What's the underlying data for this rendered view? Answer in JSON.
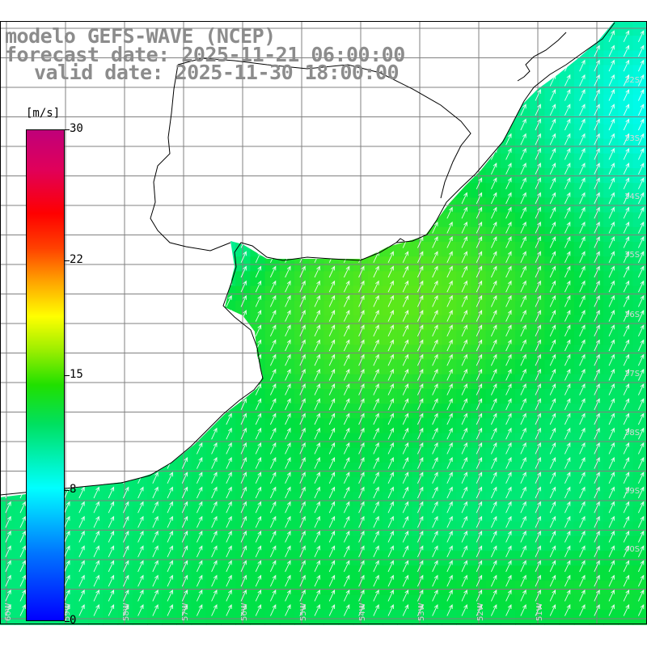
{
  "title": {
    "model": "modelo GEFS-WAVE (NCEP)",
    "forecast": "forecast date: 2025-11-21 06:00:00",
    "valid": "valid date: 2025-11-30 18:00:00"
  },
  "colorbar": {
    "unit": "[m/s]",
    "min": 0,
    "max": 30,
    "ticks": [
      {
        "value": 30,
        "label": "30"
      },
      {
        "value": 22,
        "label": "22"
      },
      {
        "value": 15,
        "label": "15"
      },
      {
        "value": 8,
        "label": "8"
      },
      {
        "value": 0,
        "label": "0"
      }
    ],
    "stops": [
      {
        "value": 0,
        "color": "#0000ff"
      },
      {
        "value": 8,
        "color": "#00ffff"
      },
      {
        "value": 12,
        "color": "#00e040"
      },
      {
        "value": 15,
        "color": "#9aee00"
      },
      {
        "value": 18,
        "color": "#ffff00"
      },
      {
        "value": 22,
        "color": "#ff6000"
      },
      {
        "value": 25,
        "color": "#ff0000"
      },
      {
        "value": 30,
        "color": "#c0007a"
      }
    ]
  },
  "colors": {
    "land": "#ffffff",
    "coast": "#000000",
    "grid": "#808080",
    "arrow": "#ffffff",
    "title": "#8c8c8c"
  },
  "map": {
    "lon_range": [
      -60,
      -48
    ],
    "lat_range": [
      -40,
      -30
    ],
    "lat_labels": [
      "32S",
      "33S",
      "34S",
      "35S",
      "36S",
      "37S",
      "38S",
      "39S",
      "40S"
    ],
    "lon_labels": [
      "60W",
      "59W",
      "58W",
      "57W",
      "56W",
      "55W",
      "54W",
      "53W",
      "52W",
      "51W"
    ],
    "wind_direction": "toward NNE",
    "speed_field": "mostly 9-15 m/s; cyan 8-10 m/s near the northeast coast; yellow-green 13-15 m/s in central band"
  }
}
